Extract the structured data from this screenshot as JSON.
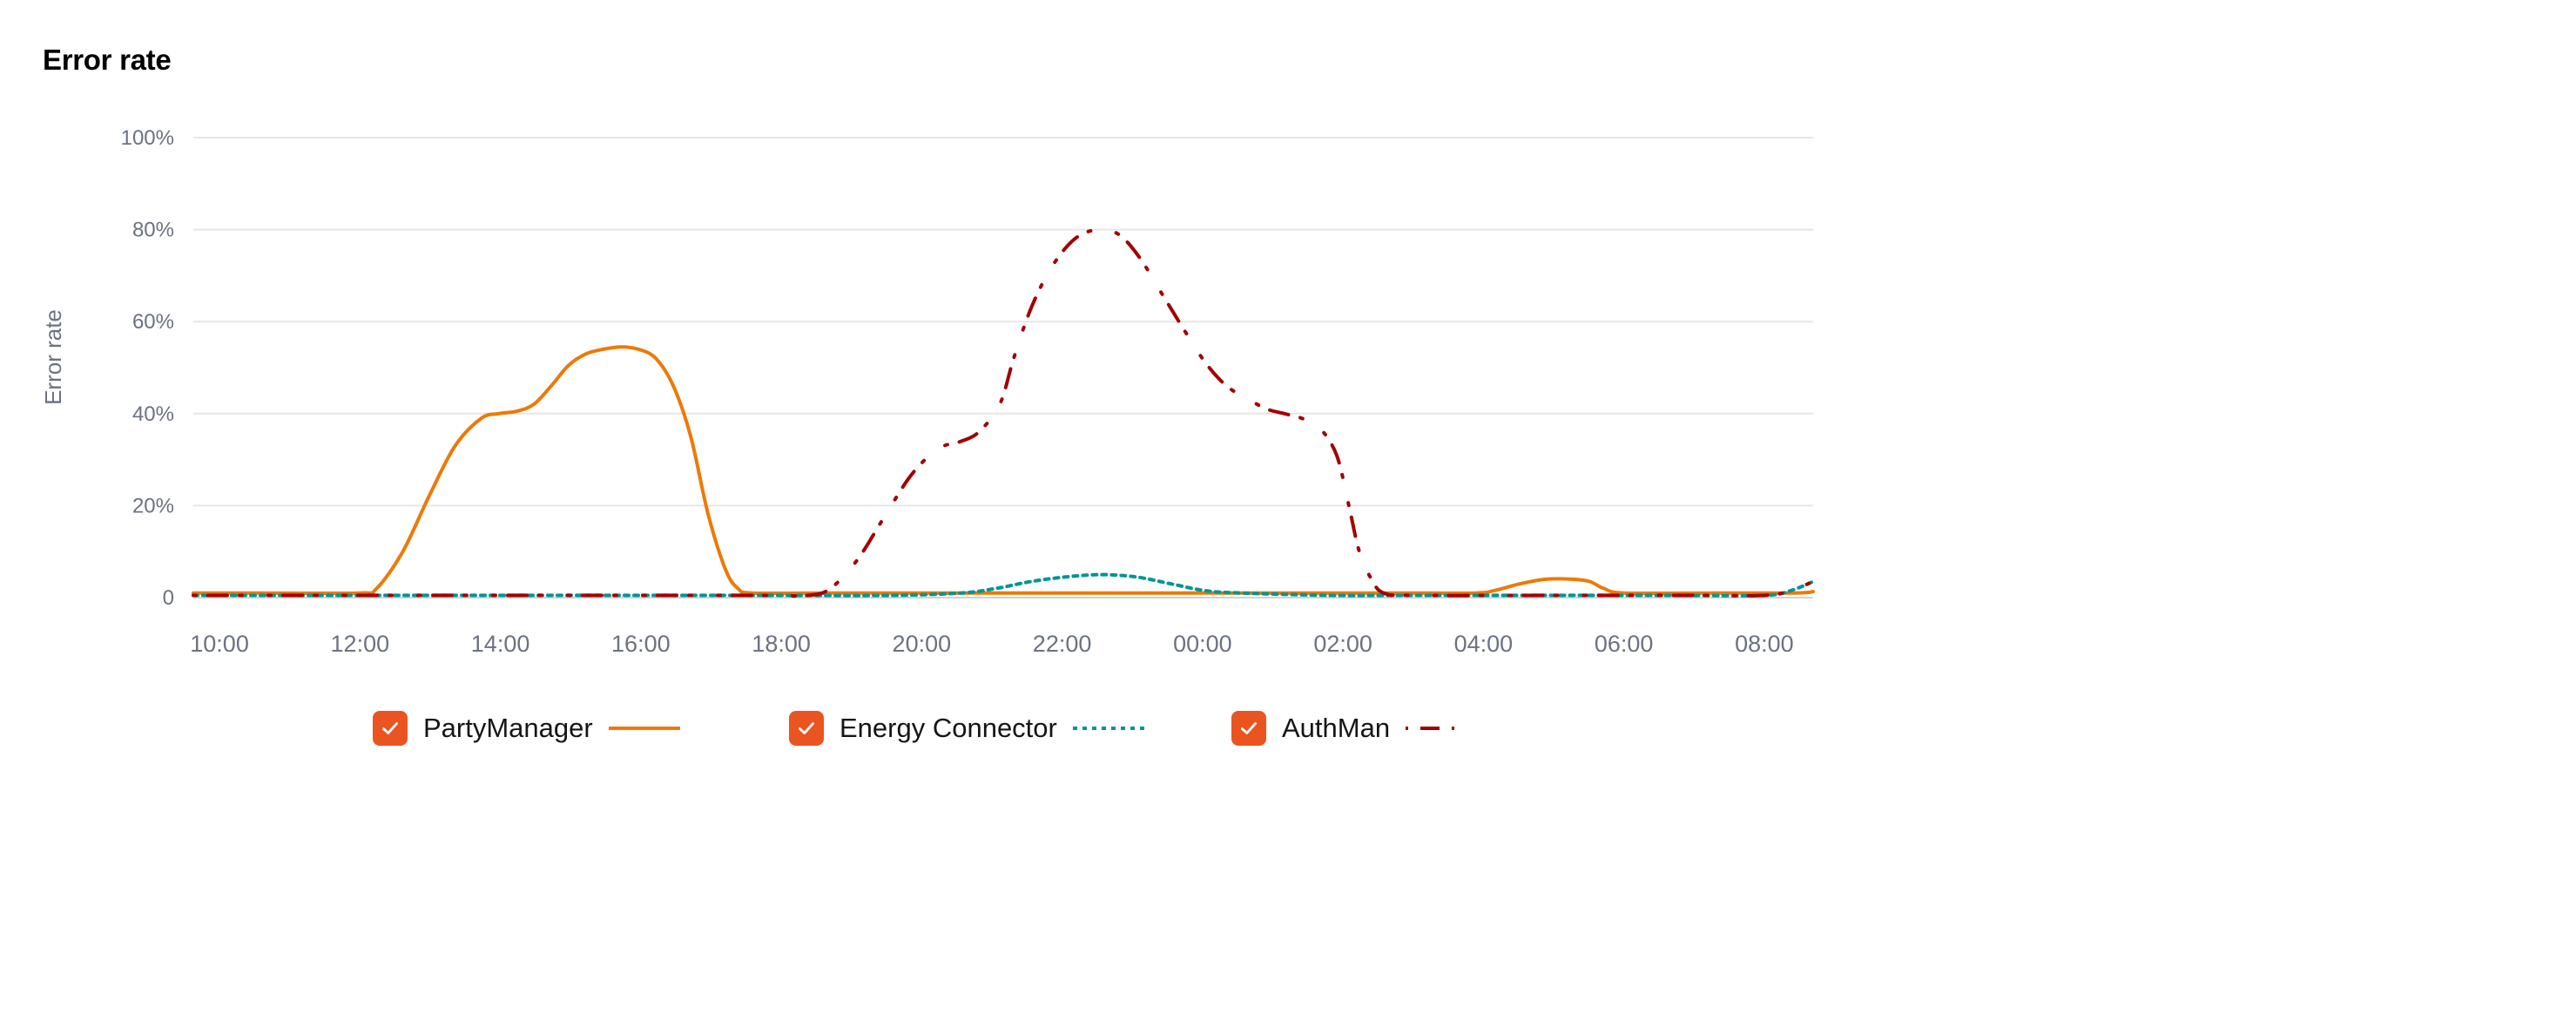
{
  "title": "Error rate",
  "chart_data": {
    "type": "line",
    "title": "Error rate",
    "ylabel": "Error rate",
    "xlabel": "",
    "ylim": [
      0,
      100
    ],
    "yticks": [
      "0",
      "20%",
      "40%",
      "60%",
      "80%",
      "100%"
    ],
    "xticks": [
      "10:00",
      "12:00",
      "14:00",
      "16:00",
      "18:00",
      "20:00",
      "22:00",
      "00:00",
      "02:00",
      "04:00",
      "06:00",
      "08:00"
    ],
    "grid": true,
    "legend_position": "bottom",
    "series": [
      {
        "name": "PartyManager",
        "color": "#EC7A08",
        "style": "solid",
        "points": [
          [
            0,
            1
          ],
          [
            40,
            1
          ],
          [
            95,
            1
          ],
          [
            105,
            2
          ],
          [
            120,
            10
          ],
          [
            135,
            22
          ],
          [
            150,
            33
          ],
          [
            165,
            39
          ],
          [
            175,
            40
          ],
          [
            185,
            40.5
          ],
          [
            195,
            42
          ],
          [
            205,
            46
          ],
          [
            215,
            50.5
          ],
          [
            225,
            53
          ],
          [
            235,
            54
          ],
          [
            245,
            54.5
          ],
          [
            255,
            54
          ],
          [
            265,
            52
          ],
          [
            275,
            46
          ],
          [
            285,
            35
          ],
          [
            295,
            18
          ],
          [
            305,
            6
          ],
          [
            312,
            2
          ],
          [
            320,
            1
          ],
          [
            360,
            1
          ],
          [
            440,
            1
          ],
          [
            550,
            1
          ],
          [
            600,
            1
          ],
          [
            650,
            1
          ],
          [
            700,
            1
          ],
          [
            735,
            1
          ],
          [
            745,
            1.5
          ],
          [
            760,
            3
          ],
          [
            775,
            4
          ],
          [
            790,
            4
          ],
          [
            800,
            3.5
          ],
          [
            808,
            2
          ],
          [
            820,
            1
          ],
          [
            870,
            1
          ],
          [
            918,
            1
          ],
          [
            928,
            1.3
          ]
        ]
      },
      {
        "name": "Energy Connector",
        "color": "#009596",
        "style": "dotted",
        "points": [
          [
            0,
            0.5
          ],
          [
            80,
            0.5
          ],
          [
            160,
            0.5
          ],
          [
            240,
            0.5
          ],
          [
            320,
            0.5
          ],
          [
            400,
            0.5
          ],
          [
            440,
            1
          ],
          [
            460,
            2
          ],
          [
            480,
            3.5
          ],
          [
            500,
            4.5
          ],
          [
            520,
            5
          ],
          [
            540,
            4.5
          ],
          [
            560,
            3
          ],
          [
            580,
            1.5
          ],
          [
            600,
            1
          ],
          [
            650,
            0.5
          ],
          [
            700,
            0.5
          ],
          [
            750,
            0.5
          ],
          [
            800,
            0.5
          ],
          [
            850,
            0.5
          ],
          [
            900,
            0.5
          ],
          [
            915,
            1.5
          ],
          [
            928,
            3.5
          ]
        ]
      },
      {
        "name": "AuthMan",
        "color": "#A30000",
        "style": "dashdot",
        "points": [
          [
            0,
            0.5
          ],
          [
            80,
            0.5
          ],
          [
            160,
            0.5
          ],
          [
            240,
            0.5
          ],
          [
            320,
            0.5
          ],
          [
            352,
            0.5
          ],
          [
            365,
            2
          ],
          [
            380,
            8
          ],
          [
            395,
            17
          ],
          [
            410,
            26
          ],
          [
            422,
            31
          ],
          [
            430,
            33
          ],
          [
            440,
            34
          ],
          [
            450,
            36
          ],
          [
            462,
            42
          ],
          [
            470,
            52
          ],
          [
            480,
            63
          ],
          [
            492,
            72
          ],
          [
            505,
            78
          ],
          [
            518,
            80
          ],
          [
            530,
            79
          ],
          [
            542,
            74
          ],
          [
            555,
            66
          ],
          [
            568,
            58
          ],
          [
            580,
            51
          ],
          [
            592,
            46
          ],
          [
            605,
            43
          ],
          [
            615,
            41
          ],
          [
            625,
            40
          ],
          [
            635,
            39
          ],
          [
            645,
            37
          ],
          [
            655,
            31
          ],
          [
            662,
            20
          ],
          [
            668,
            10
          ],
          [
            675,
            4
          ],
          [
            682,
            1
          ],
          [
            700,
            0.5
          ],
          [
            780,
            0.5
          ],
          [
            860,
            0.5
          ],
          [
            900,
            0.5
          ],
          [
            915,
            1.5
          ],
          [
            928,
            3.5
          ]
        ]
      }
    ]
  },
  "legend": [
    {
      "label": "PartyManager",
      "checked": true,
      "checkbox_color": "#E95420"
    },
    {
      "label": "Energy Connector",
      "checked": true,
      "checkbox_color": "#E95420"
    },
    {
      "label": "AuthMan",
      "checked": true,
      "checkbox_color": "#E95420"
    }
  ]
}
